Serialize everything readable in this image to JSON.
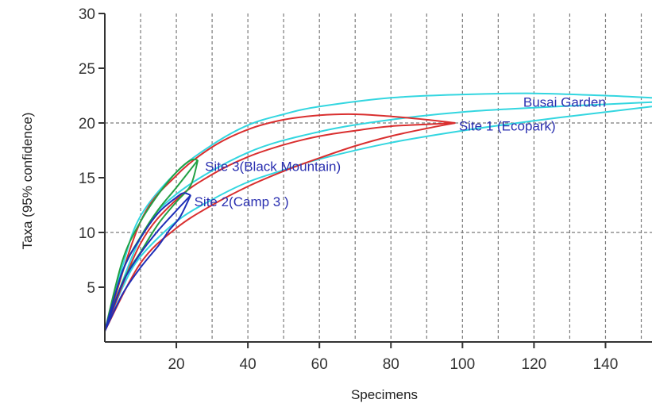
{
  "chart_data": {
    "type": "line",
    "title": "",
    "xlabel": "Specimens",
    "ylabel": "Taxa (95% confidence)",
    "xlim": [
      0,
      153
    ],
    "ylim": [
      0,
      30
    ],
    "x_ticks": [
      20,
      40,
      60,
      80,
      100,
      120,
      140
    ],
    "y_ticks": [
      5,
      10,
      15,
      20,
      25,
      30
    ],
    "x_gridlines": [
      10,
      20,
      30,
      40,
      50,
      60,
      70,
      80,
      90,
      100,
      110,
      120,
      130,
      140,
      150
    ],
    "y_gridlines": [
      10,
      20
    ],
    "grid": true,
    "legend": "none",
    "series": [
      {
        "name": "Busai Garden",
        "color": "#33d6e0",
        "upper": [
          [
            0,
            1
          ],
          [
            5,
            7
          ],
          [
            10,
            11.5
          ],
          [
            20,
            15.5
          ],
          [
            30,
            18
          ],
          [
            40,
            19.8
          ],
          [
            50,
            20.8
          ],
          [
            60,
            21.5
          ],
          [
            80,
            22.3
          ],
          [
            100,
            22.6
          ],
          [
            120,
            22.7
          ],
          [
            140,
            22.5
          ],
          [
            153,
            22.3
          ]
        ],
        "lower": [
          [
            0,
            1
          ],
          [
            5,
            5
          ],
          [
            10,
            7.8
          ],
          [
            20,
            11
          ],
          [
            30,
            13
          ],
          [
            40,
            14.6
          ],
          [
            50,
            15.7
          ],
          [
            60,
            16.7
          ],
          [
            80,
            18.2
          ],
          [
            100,
            19.3
          ],
          [
            120,
            20.2
          ],
          [
            140,
            21
          ],
          [
            153,
            21.5
          ]
        ],
        "estimate": [
          [
            0,
            1
          ],
          [
            10,
            9.5
          ],
          [
            20,
            13.5
          ],
          [
            40,
            17.3
          ],
          [
            60,
            19.2
          ],
          [
            80,
            20.3
          ],
          [
            100,
            21
          ],
          [
            120,
            21.4
          ],
          [
            140,
            21.7
          ],
          [
            153,
            21.9
          ]
        ]
      },
      {
        "name": "Site 1 (Ecopark)",
        "color": "#d92f2f",
        "upper": [
          [
            0,
            1
          ],
          [
            10,
            11
          ],
          [
            20,
            15.2
          ],
          [
            30,
            17.8
          ],
          [
            40,
            19.4
          ],
          [
            50,
            20.3
          ],
          [
            60,
            20.7
          ],
          [
            70,
            20.8
          ],
          [
            80,
            20.6
          ],
          [
            90,
            20.3
          ],
          [
            98,
            20
          ]
        ],
        "lower": [
          [
            0,
            1
          ],
          [
            10,
            7.2
          ],
          [
            20,
            10.4
          ],
          [
            30,
            12.5
          ],
          [
            40,
            14.2
          ],
          [
            50,
            15.6
          ],
          [
            60,
            16.8
          ],
          [
            70,
            17.9
          ],
          [
            80,
            18.8
          ],
          [
            90,
            19.5
          ],
          [
            98,
            20
          ]
        ],
        "estimate": [
          [
            0,
            1
          ],
          [
            10,
            9
          ],
          [
            20,
            13
          ],
          [
            30,
            15.3
          ],
          [
            40,
            16.9
          ],
          [
            50,
            18
          ],
          [
            60,
            18.8
          ],
          [
            70,
            19.3
          ],
          [
            80,
            19.7
          ],
          [
            98,
            20
          ]
        ]
      },
      {
        "name": "Site 3(Black Mountain)",
        "color": "#23a043",
        "upper": [
          [
            0,
            1
          ],
          [
            5,
            7.5
          ],
          [
            10,
            11
          ],
          [
            15,
            13.5
          ],
          [
            20,
            15.5
          ],
          [
            24,
            16.6
          ],
          [
            26,
            16.6
          ]
        ],
        "lower": [
          [
            0,
            1
          ],
          [
            5,
            5.5
          ],
          [
            10,
            8.2
          ],
          [
            15,
            10.8
          ],
          [
            20,
            12.8
          ],
          [
            24,
            14.3
          ],
          [
            26,
            16.6
          ]
        ],
        "estimate": [
          [
            0,
            1
          ],
          [
            5,
            6.5
          ],
          [
            10,
            9.6
          ],
          [
            15,
            12.1
          ],
          [
            20,
            14.1
          ],
          [
            26,
            16.6
          ]
        ]
      },
      {
        "name": "Site 2(Camp 3 )",
        "color": "#1f2fb8",
        "upper": [
          [
            0,
            1
          ],
          [
            5,
            6.5
          ],
          [
            10,
            9.5
          ],
          [
            15,
            11.8
          ],
          [
            20,
            13.2
          ],
          [
            22,
            13.6
          ],
          [
            24,
            13.4
          ]
        ],
        "lower": [
          [
            0,
            1
          ],
          [
            5,
            4.4
          ],
          [
            10,
            6.8
          ],
          [
            15,
            8.8
          ],
          [
            18,
            10.2
          ],
          [
            21,
            11.4
          ],
          [
            24,
            13.4
          ]
        ],
        "estimate": [
          [
            0,
            1
          ],
          [
            5,
            5.4
          ],
          [
            10,
            8.1
          ],
          [
            15,
            10.2
          ],
          [
            20,
            12
          ],
          [
            24,
            13.4
          ]
        ]
      }
    ],
    "annotations": [
      {
        "text": "Busai Garden",
        "x": 117,
        "y": 21.5
      },
      {
        "text": "Site 1 (Ecopark)",
        "x": 99,
        "y": 19.3
      },
      {
        "text": "Site 3(Black Mountain)",
        "x": 28,
        "y": 15.6
      },
      {
        "text": "Site 2(Camp 3 )",
        "x": 25,
        "y": 12.4
      }
    ]
  }
}
